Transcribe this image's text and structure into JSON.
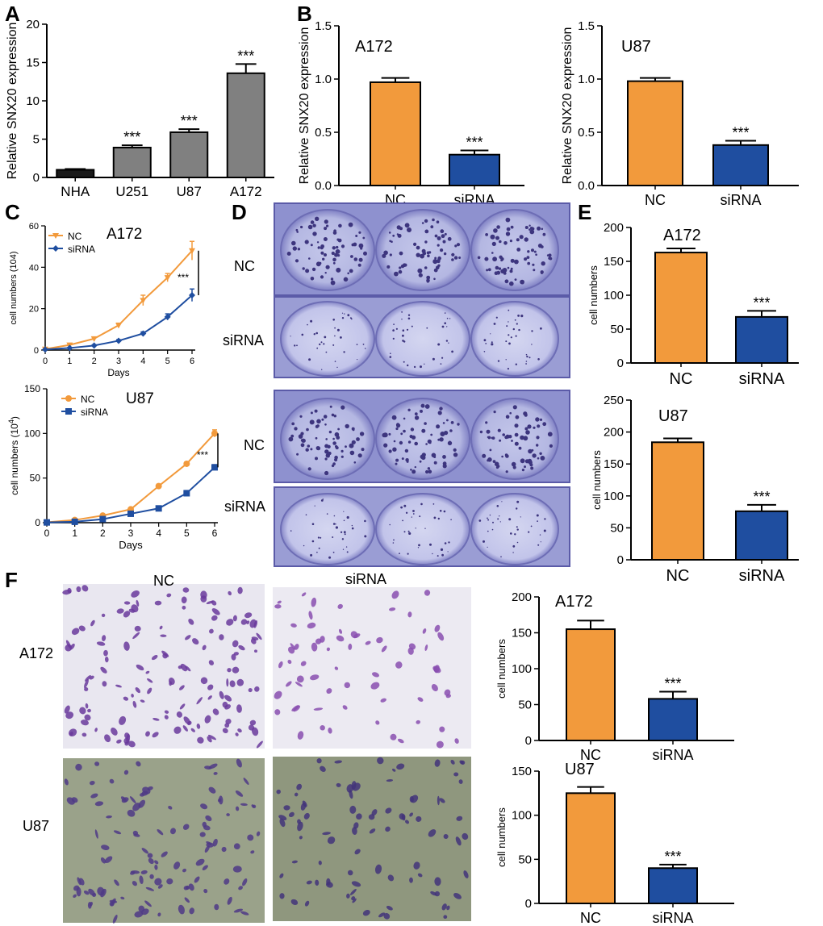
{
  "colors": {
    "nc": "#F29A3C",
    "sirna": "#1F4EA0",
    "gray_bar": "#808080",
    "nha_bar": "#1a1a1a",
    "plate_bg": "#8c8fcc",
    "plate_dark": "#3d357e",
    "micro_bg_light": "#e9e7f0",
    "micro_bg_green": "#9aa28a",
    "micro_cell": "#6a3a9c"
  },
  "panels": {
    "A": "A",
    "B": "B",
    "C": "C",
    "D": "D",
    "E": "E",
    "F": "F"
  },
  "colony_labels": {
    "nc": "NC",
    "sirna": "siRNA"
  },
  "micro_labels": {
    "nc_header": "NC",
    "sirna_header": "siRNA",
    "a172": "A172",
    "u87": "U87"
  },
  "chart_data": [
    {
      "id": "A",
      "type": "bar",
      "categories": [
        "NHA",
        "U251",
        "U87",
        "A172"
      ],
      "values": [
        1.0,
        3.9,
        5.9,
        13.6
      ],
      "errors": [
        0.1,
        0.3,
        0.4,
        1.2
      ],
      "significance": [
        "",
        "***",
        "***",
        "***"
      ],
      "bar_colors": [
        "#1a1a1a",
        "#808080",
        "#808080",
        "#808080"
      ],
      "ylabel": "Relative SNX20 expression",
      "title": "",
      "ylim": [
        0,
        20
      ],
      "yticks": [
        0,
        5,
        10,
        15,
        20
      ]
    },
    {
      "id": "B1",
      "type": "bar",
      "categories": [
        "NC",
        "siRNA"
      ],
      "values": [
        0.97,
        0.29
      ],
      "errors": [
        0.04,
        0.04
      ],
      "significance": [
        "",
        "***"
      ],
      "bar_colors": [
        "#F29A3C",
        "#1F4EA0"
      ],
      "ylabel": "Relative SNX20 expression",
      "title": "A172",
      "ylim": [
        0,
        1.5
      ],
      "yticks": [
        0.0,
        0.5,
        1.0,
        1.5
      ],
      "tick_labels": [
        "0.0",
        "0.5",
        "1.0",
        "1.5"
      ]
    },
    {
      "id": "B2",
      "type": "bar",
      "categories": [
        "NC",
        "siRNA"
      ],
      "values": [
        0.98,
        0.38
      ],
      "errors": [
        0.03,
        0.04
      ],
      "significance": [
        "",
        "***"
      ],
      "bar_colors": [
        "#F29A3C",
        "#1F4EA0"
      ],
      "ylabel": "Relative SNX20 expression",
      "title": "U87",
      "ylim": [
        0,
        1.5
      ],
      "yticks": [
        0.0,
        0.5,
        1.0,
        1.5
      ],
      "tick_labels": [
        "0.0",
        "0.5",
        "1.0",
        "1.5"
      ]
    },
    {
      "id": "C1",
      "type": "line",
      "title": "A172",
      "xlabel": "Days",
      "ylabel": "cell numbers (104)",
      "x": [
        0,
        1,
        2,
        3,
        4,
        5,
        6
      ],
      "xlim": [
        0,
        6
      ],
      "ylim": [
        0,
        60
      ],
      "yticks": [
        0,
        20,
        40,
        60
      ],
      "series": [
        {
          "name": "NC",
          "values": [
            0.5,
            2.5,
            5.5,
            12,
            24,
            35,
            48
          ],
          "errors": [
            0,
            0.4,
            0.6,
            1,
            2.5,
            2,
            4.5
          ],
          "color": "#F29A3C",
          "marker": "triangle-down"
        },
        {
          "name": "siRNA",
          "values": [
            0.3,
            1.0,
            2.2,
            4.5,
            8,
            16,
            26.5
          ],
          "errors": [
            0,
            0.2,
            0.3,
            0.5,
            0.8,
            1.5,
            3
          ],
          "color": "#1F4EA0",
          "marker": "diamond"
        }
      ],
      "significance": "***"
    },
    {
      "id": "C2",
      "type": "line",
      "title": "U87",
      "xlabel": "Days",
      "ylabel": "cell numbers (10^4)",
      "ylabel_base": "cell numbers (10",
      "ylabel_exp": "4",
      "ylabel_close": ")",
      "x": [
        0,
        1,
        2,
        3,
        4,
        5,
        6
      ],
      "xlim": [
        0,
        6
      ],
      "ylim": [
        0,
        150
      ],
      "yticks": [
        0,
        50,
        100,
        150
      ],
      "series": [
        {
          "name": "NC",
          "values": [
            0.5,
            3,
            8,
            15,
            41,
            66,
            100
          ],
          "errors": [
            0,
            0.5,
            1,
            1.5,
            2,
            2,
            4
          ],
          "color": "#F29A3C",
          "marker": "circle"
        },
        {
          "name": "siRNA",
          "values": [
            0.3,
            1,
            4,
            10,
            16,
            33,
            62
          ],
          "errors": [
            0,
            0.3,
            0.5,
            2,
            1.5,
            3,
            3
          ],
          "color": "#1F4EA0",
          "marker": "square"
        }
      ],
      "significance": "***"
    },
    {
      "id": "E1",
      "type": "bar",
      "categories": [
        "NC",
        "siRNA"
      ],
      "values": [
        163,
        68
      ],
      "errors": [
        6,
        9
      ],
      "significance": [
        "",
        "***"
      ],
      "bar_colors": [
        "#F29A3C",
        "#1F4EA0"
      ],
      "ylabel": "cell numbers",
      "title": "A172",
      "ylim": [
        0,
        200
      ],
      "yticks": [
        0,
        50,
        100,
        150,
        200
      ]
    },
    {
      "id": "E2",
      "type": "bar",
      "categories": [
        "NC",
        "siRNA"
      ],
      "values": [
        184,
        76
      ],
      "errors": [
        6,
        10
      ],
      "significance": [
        "",
        "***"
      ],
      "bar_colors": [
        "#F29A3C",
        "#1F4EA0"
      ],
      "ylabel": "cell numbers",
      "title": "U87",
      "ylim": [
        0,
        250
      ],
      "yticks": [
        0,
        50,
        100,
        150,
        200,
        250
      ]
    },
    {
      "id": "F1",
      "type": "bar",
      "categories": [
        "NC",
        "siRNA"
      ],
      "values": [
        155,
        58
      ],
      "errors": [
        12,
        10
      ],
      "significance": [
        "",
        "***"
      ],
      "bar_colors": [
        "#F29A3C",
        "#1F4EA0"
      ],
      "ylabel": "cell numbers",
      "title": "A172",
      "ylim": [
        0,
        200
      ],
      "yticks": [
        0,
        50,
        100,
        150,
        200
      ]
    },
    {
      "id": "F2",
      "type": "bar",
      "categories": [
        "NC",
        "siRNA"
      ],
      "values": [
        125,
        40
      ],
      "errors": [
        7,
        4
      ],
      "significance": [
        "",
        "***"
      ],
      "bar_colors": [
        "#F29A3C",
        "#1F4EA0"
      ],
      "ylabel": "cell numbers",
      "title": "U87",
      "ylim": [
        0,
        150
      ],
      "yticks": [
        0,
        50,
        100,
        150
      ]
    }
  ]
}
